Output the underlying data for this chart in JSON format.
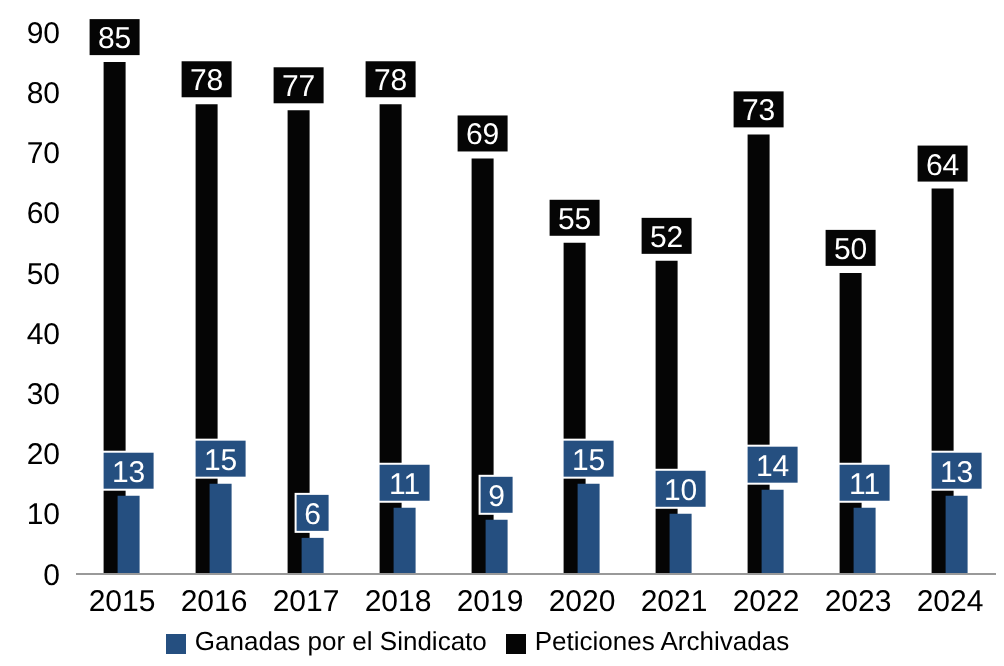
{
  "chart_data": {
    "type": "bar",
    "categories": [
      "2015",
      "2016",
      "2017",
      "2018",
      "2019",
      "2020",
      "2021",
      "2022",
      "2023",
      "2024"
    ],
    "series": [
      {
        "name": "Peticiones Archivadas",
        "color": "#050505",
        "values": [
          85,
          78,
          77,
          78,
          69,
          55,
          52,
          73,
          50,
          64
        ]
      },
      {
        "name": "Ganadas por el Sindicato",
        "color": "#254f80",
        "values": [
          13,
          15,
          6,
          11,
          9,
          15,
          10,
          14,
          11,
          13
        ]
      }
    ],
    "ylim": [
      0,
      90
    ],
    "yticks": [
      0,
      10,
      20,
      30,
      40,
      50,
      60,
      70,
      80,
      90
    ],
    "grid": false,
    "legend": "bottom",
    "data_labels": true
  }
}
